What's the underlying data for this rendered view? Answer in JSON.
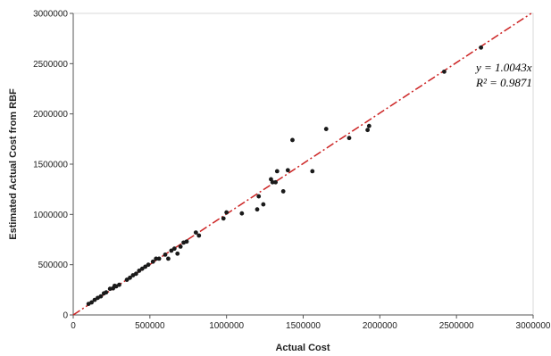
{
  "chart_data": {
    "type": "scatter",
    "title": "",
    "xlabel": "Actual Cost",
    "ylabel": "Estimated Actual Cost from RBF",
    "xlim": [
      0,
      3000000
    ],
    "ylim": [
      0,
      3000000
    ],
    "x_ticks": [
      "0",
      "500000",
      "1000000",
      "1500000",
      "2000000",
      "2500000",
      "3000000"
    ],
    "y_ticks": [
      "0",
      "500000",
      "1000000",
      "1500000",
      "2000000",
      "2500000",
      "3000000"
    ],
    "grid": false,
    "legend": "none",
    "trendline": {
      "slope": 1.0043,
      "color": "#cc2222",
      "style": "dash-dot"
    },
    "annotations": {
      "equation": "y = 1.0043x",
      "r2": "R² = 0.9871"
    },
    "marker_color": "#1a1a1a",
    "series": [
      {
        "points": [
          [
            100000,
            110000
          ],
          [
            120000,
            125000
          ],
          [
            140000,
            150000
          ],
          [
            160000,
            170000
          ],
          [
            180000,
            185000
          ],
          [
            200000,
            215000
          ],
          [
            215000,
            225000
          ],
          [
            240000,
            260000
          ],
          [
            260000,
            265000
          ],
          [
            270000,
            290000
          ],
          [
            280000,
            285000
          ],
          [
            300000,
            300000
          ],
          [
            350000,
            350000
          ],
          [
            370000,
            370000
          ],
          [
            390000,
            395000
          ],
          [
            410000,
            410000
          ],
          [
            430000,
            440000
          ],
          [
            450000,
            460000
          ],
          [
            470000,
            480000
          ],
          [
            490000,
            500000
          ],
          [
            520000,
            530000
          ],
          [
            540000,
            560000
          ],
          [
            560000,
            560000
          ],
          [
            600000,
            600000
          ],
          [
            620000,
            560000
          ],
          [
            640000,
            640000
          ],
          [
            660000,
            660000
          ],
          [
            680000,
            610000
          ],
          [
            700000,
            680000
          ],
          [
            720000,
            720000
          ],
          [
            740000,
            730000
          ],
          [
            800000,
            820000
          ],
          [
            820000,
            790000
          ],
          [
            980000,
            960000
          ],
          [
            1000000,
            1020000
          ],
          [
            1100000,
            1010000
          ],
          [
            1200000,
            1050000
          ],
          [
            1210000,
            1180000
          ],
          [
            1240000,
            1100000
          ],
          [
            1290000,
            1350000
          ],
          [
            1300000,
            1320000
          ],
          [
            1320000,
            1320000
          ],
          [
            1330000,
            1430000
          ],
          [
            1370000,
            1230000
          ],
          [
            1400000,
            1440000
          ],
          [
            1430000,
            1740000
          ],
          [
            1560000,
            1430000
          ],
          [
            1650000,
            1850000
          ],
          [
            1800000,
            1760000
          ],
          [
            1920000,
            1840000
          ],
          [
            1930000,
            1880000
          ],
          [
            2420000,
            2420000
          ],
          [
            2660000,
            2660000
          ]
        ]
      }
    ]
  }
}
